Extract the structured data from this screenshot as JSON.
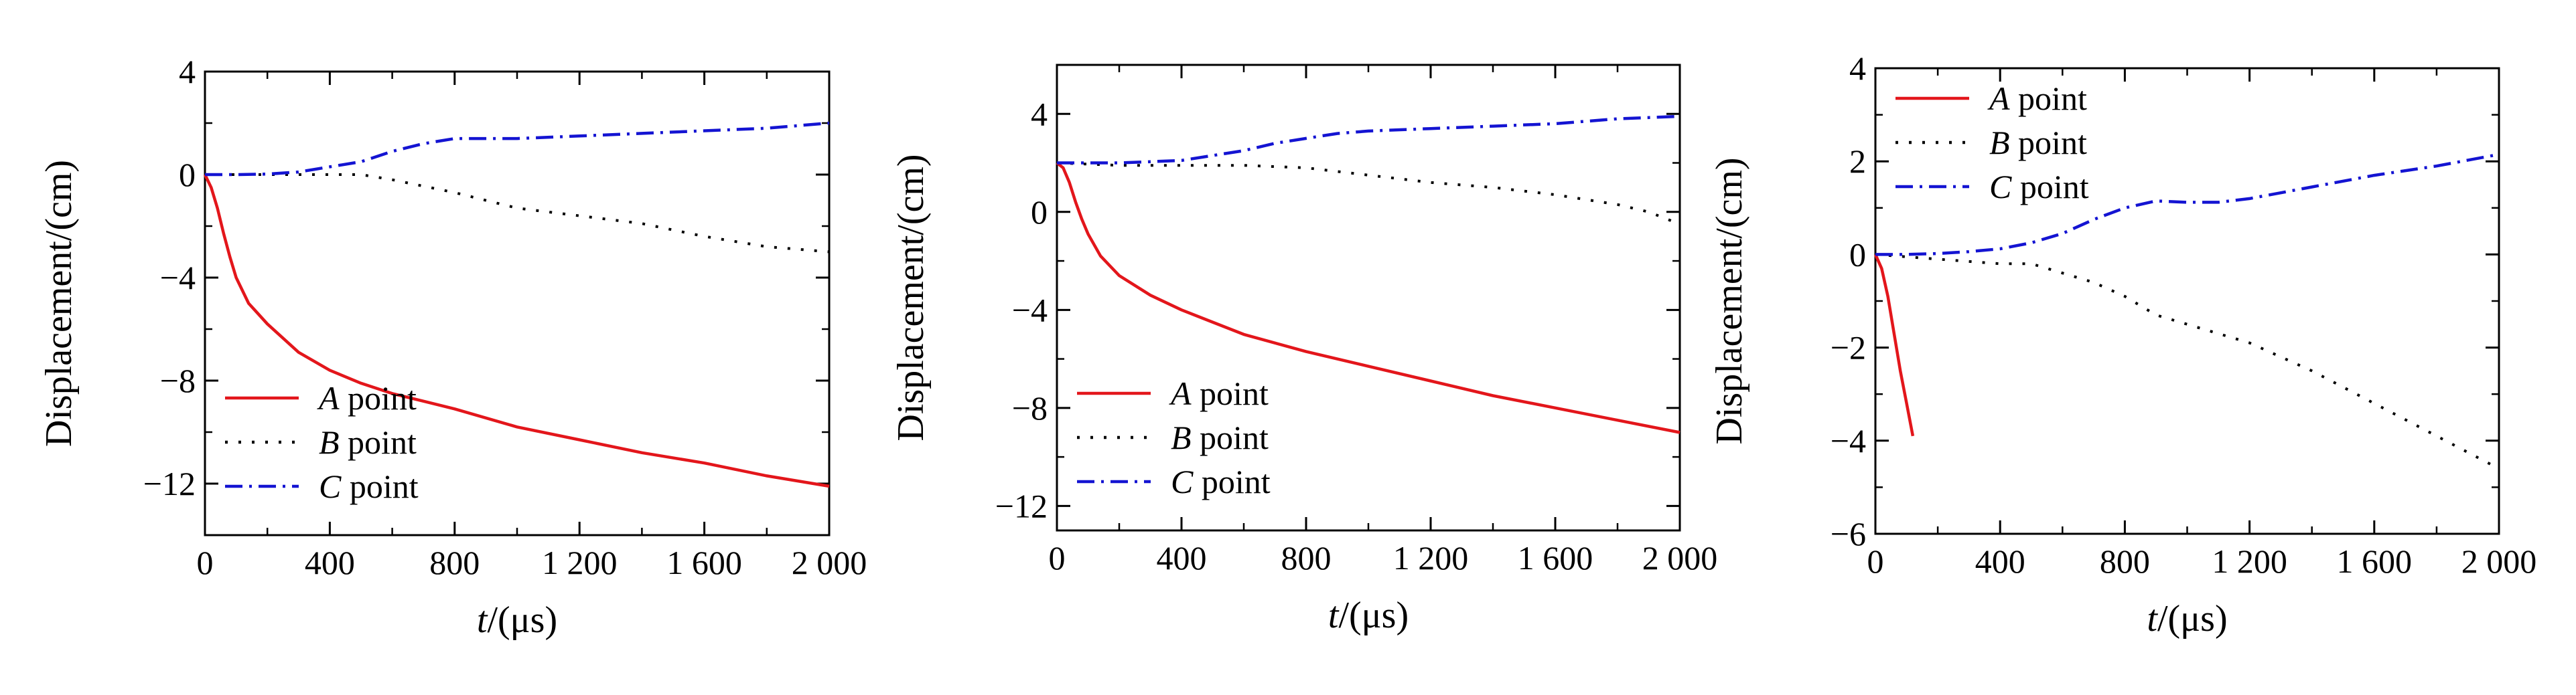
{
  "chart_data": [
    {
      "type": "line",
      "xlabel_italic": "t",
      "xlabel_rest": "/(μs)",
      "ylabel": "Displacement/(cm)",
      "xlim": [
        0,
        2000
      ],
      "ylim": [
        -14,
        4
      ],
      "xticks": [
        0,
        400,
        800,
        1200,
        1600,
        2000
      ],
      "xtick_labels": [
        "0",
        "400",
        "800",
        "1 200",
        "1 600",
        "2 000"
      ],
      "yticks": [
        4,
        0,
        -4,
        -8,
        -12
      ],
      "ytick_labels": [
        "4",
        "0",
        "−4",
        "−8",
        "−12"
      ],
      "grid": false,
      "legend_position": "bottom-left",
      "series": [
        {
          "name_italic": "A",
          "name_rest": " point",
          "color": "#e3161b",
          "dash": "solid",
          "x": [
            0,
            20,
            40,
            60,
            80,
            100,
            140,
            200,
            300,
            400,
            500,
            600,
            800,
            1000,
            1200,
            1400,
            1600,
            1800,
            2000
          ],
          "y": [
            0,
            -0.5,
            -1.3,
            -2.3,
            -3.2,
            -4.0,
            -5.0,
            -5.8,
            -6.9,
            -7.6,
            -8.1,
            -8.5,
            -9.1,
            -9.8,
            -10.3,
            -10.8,
            -11.2,
            -11.7,
            -12.1
          ]
        },
        {
          "name_italic": "B",
          "name_rest": " point",
          "color": "#000000",
          "dash": "dotted",
          "x": [
            0,
            200,
            400,
            500,
            600,
            800,
            1000,
            1200,
            1400,
            1600,
            1800,
            1900,
            2000
          ],
          "y": [
            0,
            0,
            0,
            0,
            -0.2,
            -0.7,
            -1.3,
            -1.6,
            -1.9,
            -2.4,
            -2.8,
            -2.9,
            -3.0
          ]
        },
        {
          "name_italic": "C",
          "name_rest": " point",
          "color": "#1414d2",
          "dash": "dashdot",
          "x": [
            0,
            100,
            200,
            300,
            400,
            500,
            600,
            700,
            800,
            1000,
            1200,
            1400,
            1600,
            1800,
            2000
          ],
          "y": [
            0,
            0,
            0.02,
            0.1,
            0.3,
            0.5,
            0.9,
            1.2,
            1.4,
            1.4,
            1.5,
            1.6,
            1.7,
            1.8,
            2.0
          ]
        }
      ]
    },
    {
      "type": "line",
      "xlabel_italic": "t",
      "xlabel_rest": "/(μs)",
      "ylabel": "Displacement/(cm)",
      "xlim": [
        0,
        2000
      ],
      "ylim": [
        -13,
        6
      ],
      "xticks": [
        0,
        400,
        800,
        1200,
        1600,
        2000
      ],
      "xtick_labels": [
        "0",
        "400",
        "800",
        "1 200",
        "1 600",
        "2 000"
      ],
      "yticks": [
        4,
        0,
        -4,
        -8,
        -12
      ],
      "ytick_labels": [
        "4",
        "0",
        "−4",
        "−8",
        "−12"
      ],
      "grid": false,
      "legend_position": "bottom-left",
      "series": [
        {
          "name_italic": "A",
          "name_rest": " point",
          "color": "#e3161b",
          "dash": "solid",
          "x": [
            0,
            20,
            40,
            60,
            80,
            100,
            140,
            200,
            300,
            400,
            500,
            600,
            800,
            1000,
            1200,
            1400,
            1600,
            1800,
            2000
          ],
          "y": [
            2,
            1.8,
            1.2,
            0.4,
            -0.3,
            -0.9,
            -1.8,
            -2.6,
            -3.4,
            -4.0,
            -4.5,
            -5.0,
            -5.7,
            -6.3,
            -6.9,
            -7.5,
            -8.0,
            -8.5,
            -9.0
          ]
        },
        {
          "name_italic": "B",
          "name_rest": " point",
          "color": "#000000",
          "dash": "dotted",
          "x": [
            0,
            200,
            400,
            600,
            800,
            1000,
            1200,
            1400,
            1600,
            1800,
            1900,
            2000
          ],
          "y": [
            2,
            1.9,
            1.9,
            1.9,
            1.8,
            1.5,
            1.2,
            1.0,
            0.7,
            0.3,
            0,
            -0.5
          ]
        },
        {
          "name_italic": "C",
          "name_rest": " point",
          "color": "#1414d2",
          "dash": "dashdot",
          "x": [
            0,
            100,
            200,
            300,
            400,
            500,
            600,
            700,
            800,
            900,
            1000,
            1200,
            1400,
            1600,
            1800,
            2000
          ],
          "y": [
            2,
            2,
            2,
            2.05,
            2.1,
            2.3,
            2.5,
            2.8,
            3.0,
            3.2,
            3.3,
            3.4,
            3.5,
            3.6,
            3.8,
            3.9
          ]
        }
      ]
    },
    {
      "type": "line",
      "xlabel_italic": "t",
      "xlabel_rest": "/(μs)",
      "ylabel": "Displacement/(cm)",
      "xlim": [
        0,
        2000
      ],
      "ylim": [
        -6,
        4
      ],
      "xticks": [
        0,
        400,
        800,
        1200,
        1600,
        2000
      ],
      "xtick_labels": [
        "0",
        "400",
        "800",
        "1 200",
        "1 600",
        "2 000"
      ],
      "yticks": [
        4,
        2,
        0,
        -2,
        -4,
        -6
      ],
      "ytick_labels": [
        "4",
        "2",
        "0",
        "−2",
        "−4",
        "−6"
      ],
      "grid": false,
      "legend_position": "top-left",
      "series": [
        {
          "name_italic": "A",
          "name_rest": " point",
          "color": "#e3161b",
          "dash": "solid",
          "x": [
            0,
            20,
            40,
            60,
            80,
            100,
            120
          ],
          "y": [
            0,
            -0.3,
            -0.9,
            -1.7,
            -2.5,
            -3.2,
            -3.9
          ]
        },
        {
          "name_italic": "B",
          "name_rest": " point",
          "color": "#000000",
          "dash": "dotted",
          "x": [
            0,
            200,
            400,
            500,
            600,
            700,
            800,
            900,
            1000,
            1200,
            1400,
            1600,
            1800,
            2000
          ],
          "y": [
            0,
            -0.1,
            -0.2,
            -0.2,
            -0.4,
            -0.6,
            -0.9,
            -1.3,
            -1.5,
            -1.9,
            -2.5,
            -3.2,
            -3.9,
            -4.6
          ]
        },
        {
          "name_italic": "C",
          "name_rest": " point",
          "color": "#1414d2",
          "dash": "dashdot",
          "x": [
            0,
            100,
            200,
            300,
            400,
            500,
            600,
            700,
            800,
            900,
            1000,
            1100,
            1200,
            1400,
            1600,
            1800,
            2000
          ],
          "y": [
            0,
            0,
            0.02,
            0.06,
            0.12,
            0.25,
            0.45,
            0.75,
            1.0,
            1.15,
            1.12,
            1.12,
            1.2,
            1.45,
            1.7,
            1.9,
            2.15
          ]
        }
      ]
    }
  ]
}
